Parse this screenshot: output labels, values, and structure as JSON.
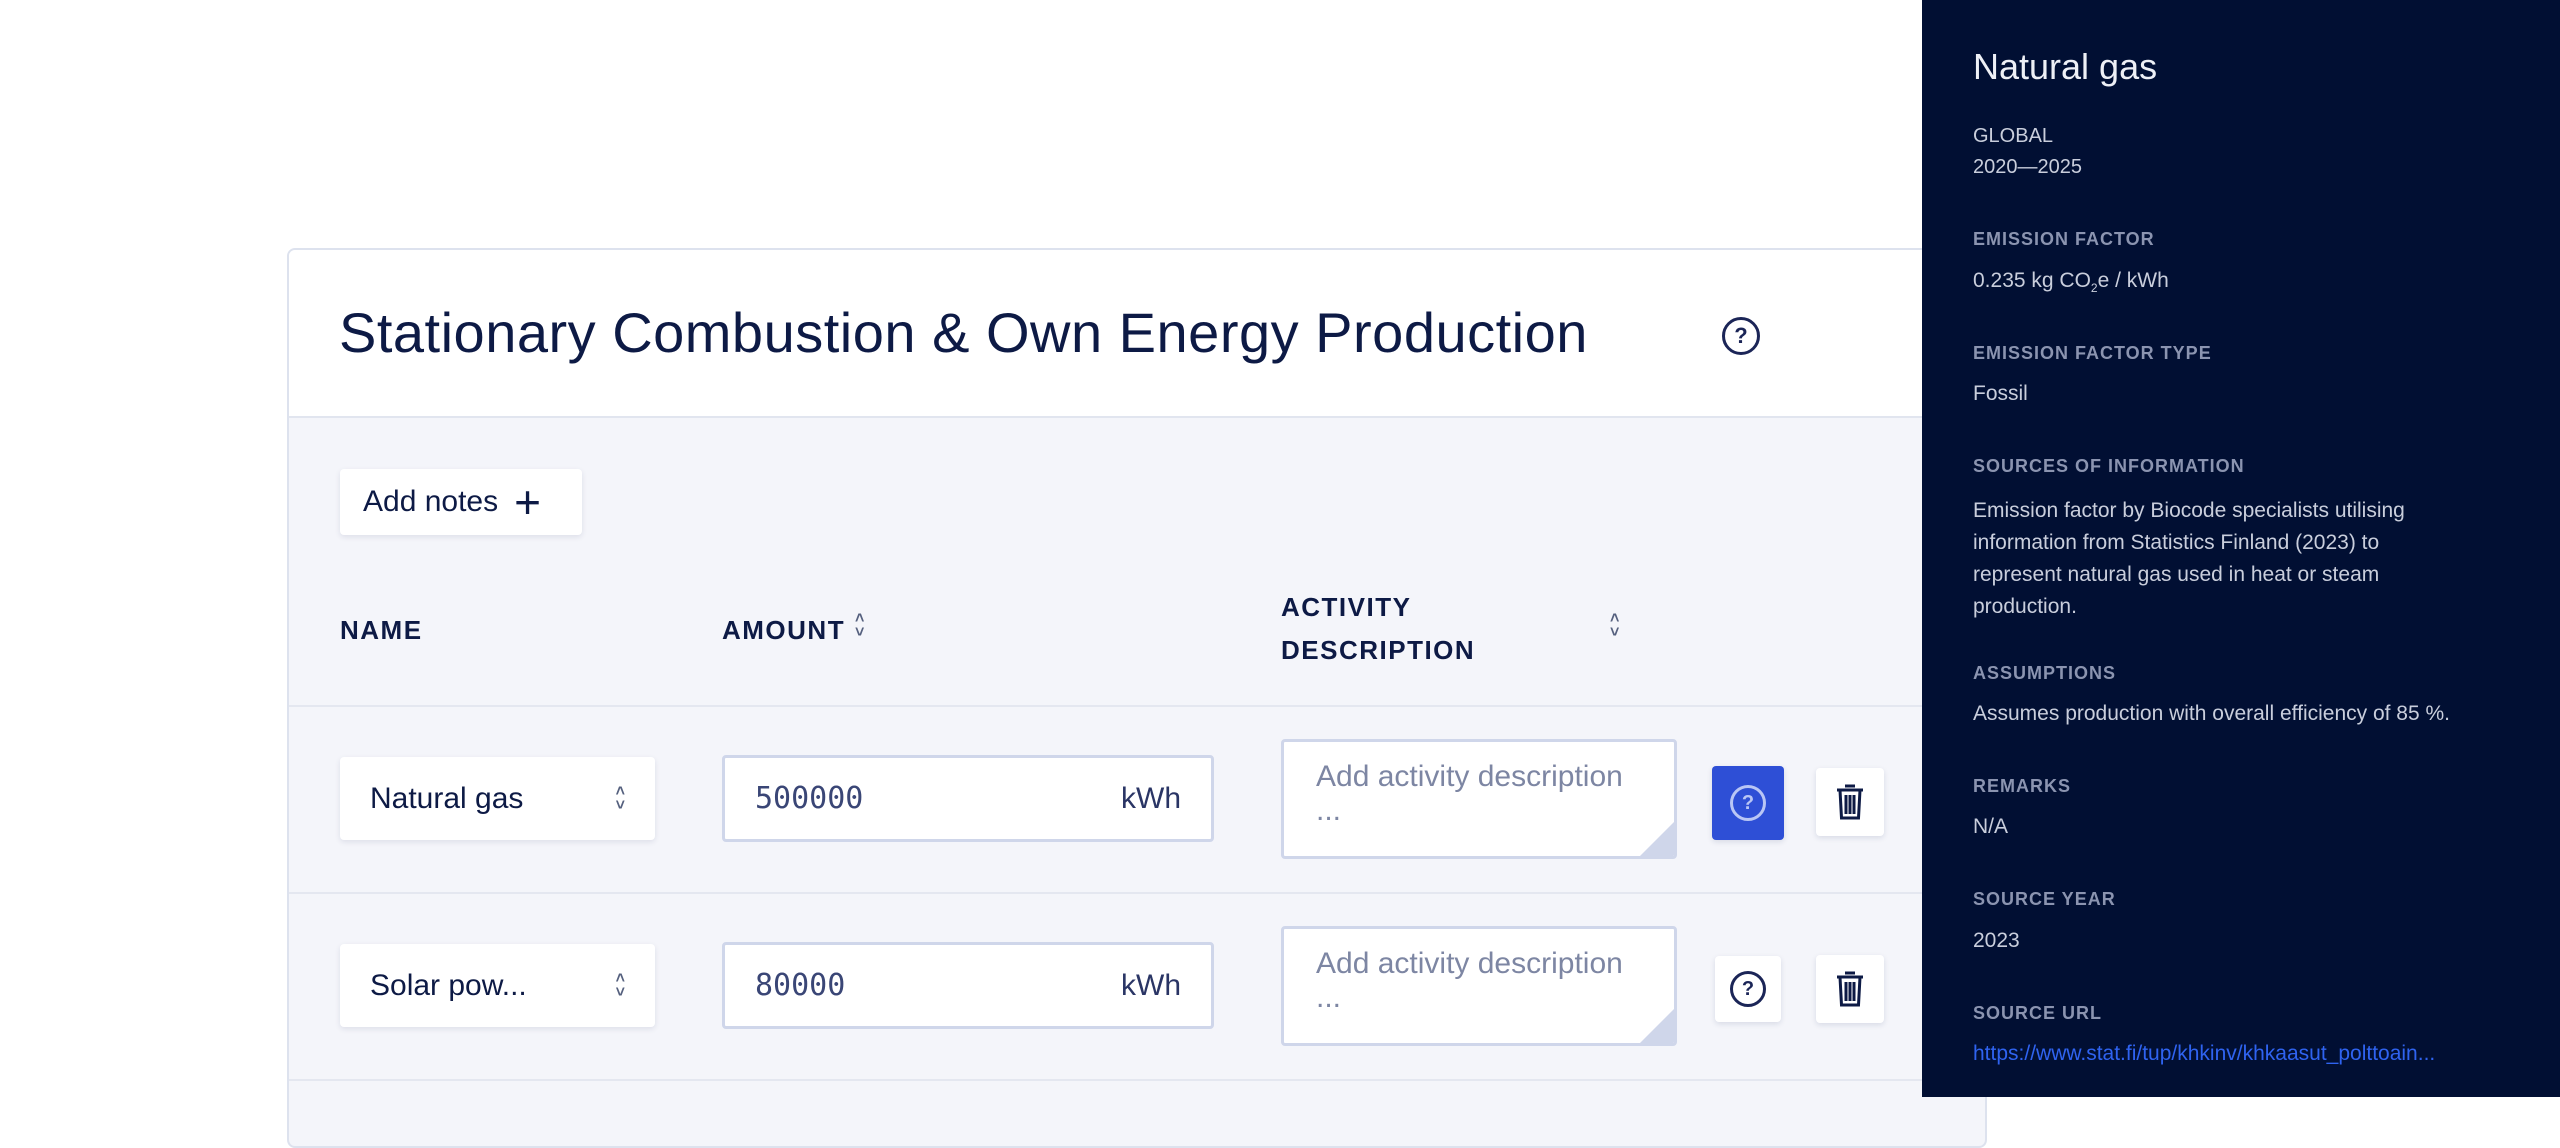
{
  "section": {
    "title": "Stationary Combustion & Own Energy Production",
    "add_notes_label": "Add notes",
    "columns": {
      "name": "NAME",
      "amount": "AMOUNT",
      "activity_line1": "ACTIVITY",
      "activity_line2": "DESCRIPTION"
    },
    "rows": [
      {
        "name": "Natural gas",
        "amount": "500000",
        "unit": "kWh",
        "description_placeholder": "Add activity description ...",
        "info_active": true
      },
      {
        "name": "Solar pow...",
        "amount": "80000",
        "unit": "kWh",
        "description_placeholder": "Add activity description ...",
        "info_active": false
      }
    ]
  },
  "panel": {
    "title": "Natural gas",
    "region": "GLOBAL",
    "period": "2020—2025",
    "emission_factor_label": "EMISSION FACTOR",
    "emission_factor_pre": "0.235 kg CO",
    "emission_factor_sub": "2",
    "emission_factor_post": "e / kWh",
    "type_label": "EMISSION FACTOR TYPE",
    "type_value": "Fossil",
    "sources_label": "SOURCES OF INFORMATION",
    "sources_lines": [
      "Emission factor by Biocode specialists utilising",
      "information from Statistics Finland (2023) to",
      "represent natural gas used in heat or steam",
      "production."
    ],
    "assumptions_label": "ASSUMPTIONS",
    "assumptions_value": "Assumes production with overall efficiency of 85 %.",
    "remarks_label": "REMARKS",
    "remarks_value": "N/A",
    "source_year_label": "SOURCE YEAR",
    "source_year_value": "2023",
    "source_url_label": "SOURCE URL",
    "source_url_value": "https://www.stat.fi/tup/khkinv/khkaasut_polttoain..."
  },
  "colors": {
    "panel_bg": "#010f33",
    "accent": "#2e4fd6",
    "link": "#2f63f0",
    "text": "#0d1a45"
  }
}
